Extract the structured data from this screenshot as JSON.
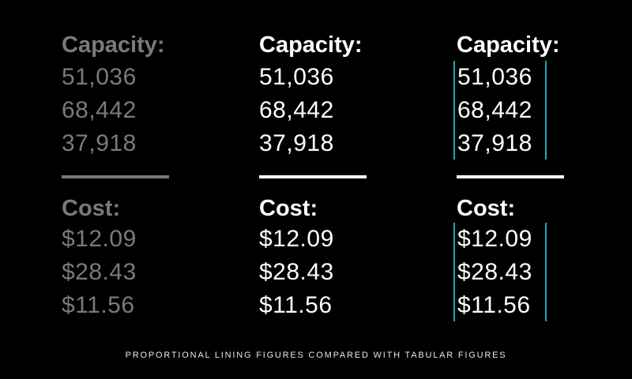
{
  "columns": [
    {
      "style": "proportional-muted",
      "capacity_label": "Capacity:",
      "capacity": [
        "51,036",
        "68,442",
        "37,918"
      ],
      "cost_label": "Cost:",
      "cost": [
        "$12.09",
        "$28.43",
        "$11.56"
      ]
    },
    {
      "style": "proportional",
      "capacity_label": "Capacity:",
      "capacity": [
        "51,036",
        "68,442",
        "37,918"
      ],
      "cost_label": "Cost:",
      "cost": [
        "$12.09",
        "$28.43",
        "$11.56"
      ]
    },
    {
      "style": "tabular",
      "capacity_label": "Capacity:",
      "capacity": [
        "51,036",
        "68,442",
        "37,918"
      ],
      "cost_label": "Cost:",
      "cost": [
        "$12.09",
        "$28.43",
        "$11.56"
      ]
    }
  ],
  "caption": "PROPORTIONAL LINING FIGURES COMPARED WITH TABULAR FIGURES",
  "colors": {
    "background": "#000000",
    "muted": "#7a7a7a",
    "text": "#ffffff",
    "guide": "#19a9bb"
  }
}
